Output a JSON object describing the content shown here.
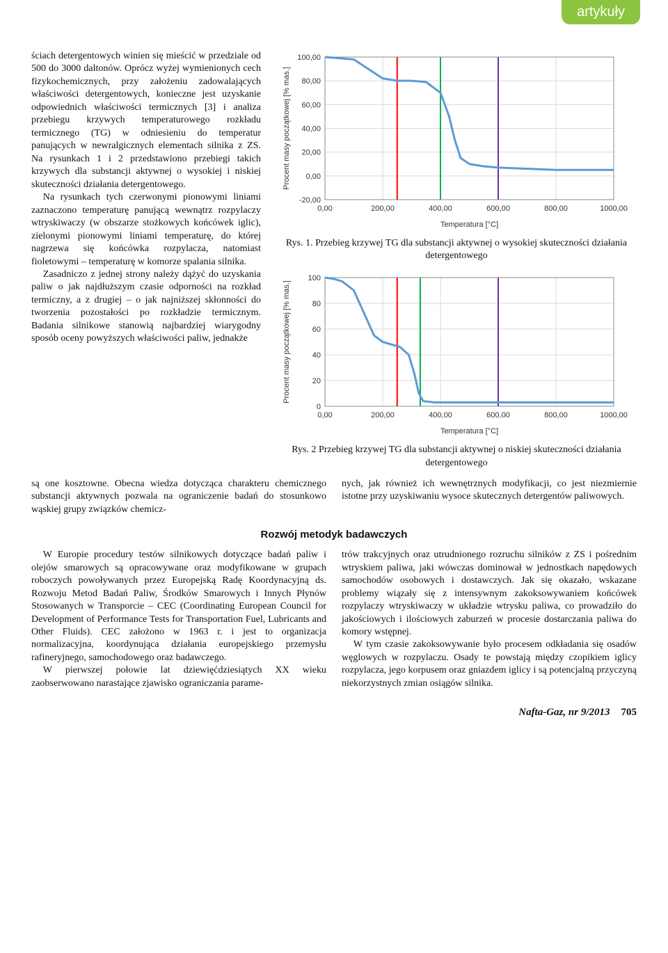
{
  "header": {
    "tab": "artykuły"
  },
  "text": {
    "left1_a": "ściach detergentowych winien się mieścić w przedziale od 500 do 3000 daltonów. Oprócz wyżej wymienionych cech fizykochemicznych, przy założeniu zadowalających właściwości detergentowych, konieczne jest uzyskanie odpowiednich właściwości termicznych [3] i analiza przebiegu krzywych temperaturowego rozkładu termicznego (TG) w odniesieniu do temperatur panujących w newralgicznych elementach silnika z ZS. Na rysunkach 1 i 2 przedstawiono przebiegi takich krzywych dla substancji aktywnej o wysokiej i niskiej skuteczności działania detergentowego.",
    "left1_b": "Na rysunkach tych czerwonymi pionowymi liniami zaznaczono temperaturę panującą wewnątrz rozpylaczy wtryskiwaczy (w obszarze stożkowych końcówek iglic), zielonymi pionowymi liniami temperaturę, do której nagrzewa się końcówka rozpylacza, natomiast fioletowymi – temperaturę w komorze spalania silnika.",
    "left1_c": "Zasadniczo z jednej strony należy dążyć do uzyskania paliw o jak najdłuższym czasie odporności na rozkład termiczny, a z drugiej – o jak najniższej skłonności do tworzenia pozostałości po rozkładzie termicznym. Badania silnikowe stanowią najbardziej wiarygodny sposób oceny powyższych właściwości paliw, jednakże ",
    "low_left": "są one kosztowne. Obecna wiedza dotycząca charakteru chemicznego substancji aktywnych pozwala na ograniczenie badań do stosunkowo wąskiej grupy związków chemicz-",
    "low_right": "nych, jak również ich wewnętrznych modyfikacji, co jest niezmiernie istotne przy uzyskiwaniu wysoce skutecznych detergentów paliwowych."
  },
  "section_heading": "Rozwój metodyk badawczych",
  "sec2_left_a": "W Europie procedury testów silnikowych dotyczące badań paliw i olejów smarowych są opracowywane oraz modyfikowane w grupach roboczych powoływanych przez Europejską Radę Koordynacyjną ds. Rozwoju Metod Badań Paliw, Środków Smarowych i Innych Płynów Stosowanych w Transporcie – CEC (Coordinating European Council for Development of Performance Tests for Transportation Fuel, Lubricants and Other Fluids). CEC założono w 1963 r. i jest to organizacja normalizacyjna, koordynująca działania europejskiego przemysłu rafineryjnego, samochodowego oraz badawczego.",
  "sec2_left_b": "W pierwszej połowie lat dziewięćdziesiątych XX wieku zaobserwowano narastające zjawisko ograniczania parame-",
  "sec2_right_a": "trów trakcyjnych oraz utrudnionego rozruchu silników z ZS i pośrednim wtryskiem paliwa, jaki wówczas dominował w jednostkach napędowych samochodów osobowych i dostawczych. Jak się okazało, wskazane problemy wiązały się z intensywnym zakoksowywaniem końcówek rozpylaczy wtryskiwaczy w układzie wtrysku paliwa, co prowadziło do jakościowych i ilościowych zaburzeń w procesie dostarczania paliwa do komory wstępnej.",
  "sec2_right_b": "W tym czasie zakoksowywanie było procesem odkładania się osadów węglowych w rozpylaczu. Osady te powstają między czopikiem iglicy rozpylacza, jego korpusem oraz gniazdem iglicy i są potencjalną przyczyną niekorzystnych zmian osiągów silnika.",
  "chart1": {
    "type": "line",
    "y_label": "Procent masy początkowej [% mas.]",
    "x_label": "Temperatura [°C]",
    "x_ticks": [
      "0,00",
      "200,00",
      "400,00",
      "600,00",
      "800,00",
      "1000,00"
    ],
    "y_ticks": [
      "-20,00",
      "0,00",
      "20,00",
      "40,00",
      "60,00",
      "80,00",
      "100,00"
    ],
    "xlim": [
      0,
      1000
    ],
    "ylim": [
      -20,
      100
    ],
    "curve_color": "#5b9bd5",
    "curve_points": [
      [
        0,
        100
      ],
      [
        50,
        99
      ],
      [
        100,
        98
      ],
      [
        150,
        90
      ],
      [
        200,
        82
      ],
      [
        250,
        80
      ],
      [
        300,
        80
      ],
      [
        350,
        79
      ],
      [
        400,
        70
      ],
      [
        430,
        50
      ],
      [
        450,
        30
      ],
      [
        470,
        15
      ],
      [
        500,
        10
      ],
      [
        550,
        8
      ],
      [
        600,
        7
      ],
      [
        700,
        6
      ],
      [
        800,
        5
      ],
      [
        900,
        5
      ],
      [
        1000,
        5
      ]
    ],
    "vlines": [
      {
        "x": 250,
        "color": "#ff0000"
      },
      {
        "x": 400,
        "color": "#00b050"
      },
      {
        "x": 600,
        "color": "#7030a0"
      }
    ],
    "grid_color": "#d9d9d9",
    "background": "#ffffff",
    "caption": "Rys. 1. Przebieg krzywej TG dla substancji aktywnej o wysokiej skuteczności działania detergentowego"
  },
  "chart2": {
    "type": "line",
    "y_label": "Procent masy początkowej [% mas.]",
    "x_label": "Temperatura [°C]",
    "x_ticks": [
      "0,00",
      "200,00",
      "400,00",
      "600,00",
      "800,00",
      "1000,00"
    ],
    "y_ticks": [
      "0",
      "20",
      "40",
      "60",
      "80",
      "100"
    ],
    "xlim": [
      0,
      1000
    ],
    "ylim": [
      0,
      100
    ],
    "curve_color": "#5b9bd5",
    "curve_points": [
      [
        0,
        100
      ],
      [
        30,
        99
      ],
      [
        60,
        97
      ],
      [
        100,
        90
      ],
      [
        140,
        70
      ],
      [
        170,
        55
      ],
      [
        200,
        50
      ],
      [
        230,
        48
      ],
      [
        260,
        46
      ],
      [
        290,
        40
      ],
      [
        310,
        25
      ],
      [
        325,
        10
      ],
      [
        340,
        4
      ],
      [
        380,
        3
      ],
      [
        500,
        3
      ],
      [
        700,
        3
      ],
      [
        1000,
        3
      ]
    ],
    "vlines": [
      {
        "x": 250,
        "color": "#ff0000"
      },
      {
        "x": 330,
        "color": "#00b050"
      },
      {
        "x": 600,
        "color": "#7030a0"
      }
    ],
    "grid_color": "#d9d9d9",
    "background": "#ffffff",
    "caption": "Rys. 2 Przebieg krzywej TG dla substancji aktywnej o niskiej skuteczności działania detergentowego"
  },
  "footer": {
    "journal": "Nafta-Gaz, nr 9/2013",
    "page": "705"
  },
  "chart_layout": {
    "tick_fontsize": 11,
    "label_fontsize": 11,
    "curve_width": 3,
    "vline_width": 2,
    "axis_color": "#888"
  }
}
